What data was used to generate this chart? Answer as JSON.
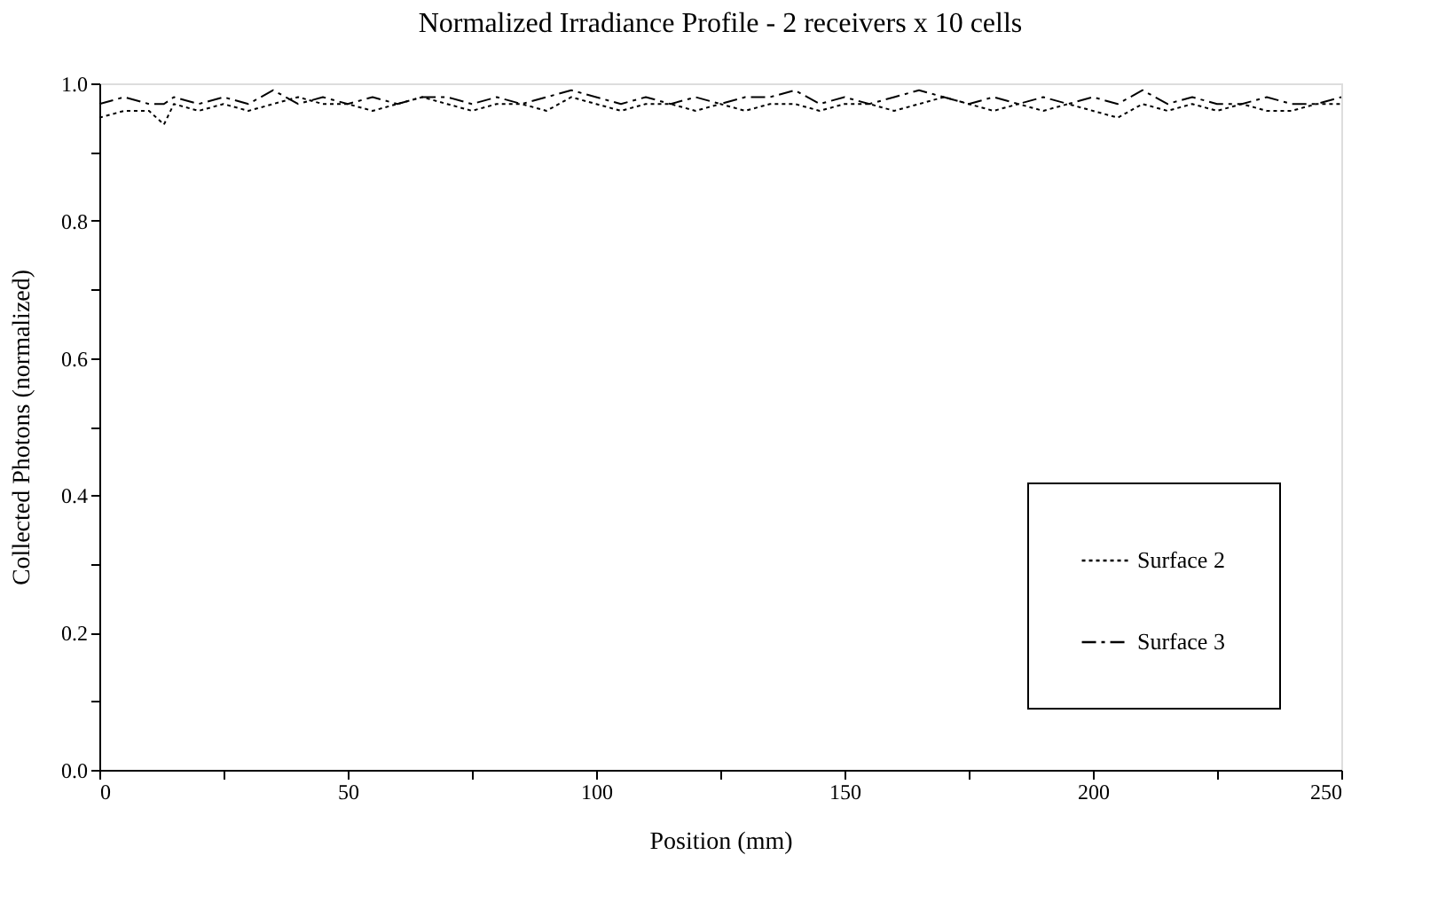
{
  "chart_data": {
    "type": "line",
    "title": "Normalized Irradiance Profile - 2 receivers x 10 cells",
    "xlabel": "Position (mm)",
    "ylabel": "Collected Photons (normalized)",
    "x": [
      0,
      5,
      10,
      13,
      15,
      20,
      25,
      30,
      35,
      40,
      45,
      50,
      55,
      60,
      65,
      70,
      75,
      80,
      85,
      90,
      95,
      100,
      105,
      110,
      115,
      120,
      125,
      130,
      135,
      140,
      145,
      150,
      155,
      160,
      165,
      170,
      175,
      180,
      185,
      190,
      195,
      200,
      205,
      210,
      215,
      220,
      225,
      230,
      235,
      240,
      245,
      250
    ],
    "series": [
      {
        "name": "Surface 2",
        "color": "#000000",
        "line_style": "dotted",
        "values": [
          0.95,
          0.96,
          0.96,
          0.94,
          0.97,
          0.96,
          0.97,
          0.96,
          0.97,
          0.98,
          0.97,
          0.97,
          0.96,
          0.97,
          0.98,
          0.97,
          0.96,
          0.97,
          0.97,
          0.96,
          0.98,
          0.97,
          0.96,
          0.97,
          0.97,
          0.96,
          0.97,
          0.96,
          0.97,
          0.97,
          0.96,
          0.97,
          0.97,
          0.96,
          0.97,
          0.98,
          0.97,
          0.96,
          0.97,
          0.96,
          0.97,
          0.96,
          0.95,
          0.97,
          0.96,
          0.97,
          0.96,
          0.97,
          0.96,
          0.96,
          0.97,
          0.97
        ]
      },
      {
        "name": "Surface 3",
        "color": "#000000",
        "line_style": "dashed",
        "values": [
          0.97,
          0.98,
          0.97,
          0.97,
          0.98,
          0.97,
          0.98,
          0.97,
          0.99,
          0.97,
          0.98,
          0.97,
          0.98,
          0.97,
          0.98,
          0.98,
          0.97,
          0.98,
          0.97,
          0.98,
          0.99,
          0.98,
          0.97,
          0.98,
          0.97,
          0.98,
          0.97,
          0.98,
          0.98,
          0.99,
          0.97,
          0.98,
          0.97,
          0.98,
          0.99,
          0.98,
          0.97,
          0.98,
          0.97,
          0.98,
          0.97,
          0.98,
          0.97,
          0.99,
          0.97,
          0.98,
          0.97,
          0.97,
          0.98,
          0.97,
          0.97,
          0.98
        ]
      }
    ],
    "xlim": [
      0,
      250
    ],
    "ylim": [
      0,
      1
    ],
    "xticks": [
      0,
      {
        "value": 25,
        "label": null
      },
      50,
      {
        "value": 75,
        "label": null
      },
      100,
      {
        "value": 125,
        "label": null
      },
      150,
      {
        "value": 175,
        "label": null
      },
      200,
      {
        "value": 225,
        "label": null
      },
      250
    ],
    "yticks": [
      {
        "value": 0,
        "label": "0.0"
      },
      {
        "value": 0.1,
        "label": null
      },
      {
        "value": 0.2,
        "label": "0.2"
      },
      {
        "value": 0.3,
        "label": null
      },
      {
        "value": 0.4,
        "label": "0.4"
      },
      {
        "value": 0.5,
        "label": null
      },
      {
        "value": 0.6,
        "label": "0.6"
      },
      {
        "value": 0.7,
        "label": null
      },
      {
        "value": 0.8,
        "label": "0.8"
      },
      {
        "value": 0.9,
        "label": null
      },
      {
        "value": 1,
        "label": "1.0"
      }
    ],
    "grid": false,
    "legend": "bottom right"
  }
}
